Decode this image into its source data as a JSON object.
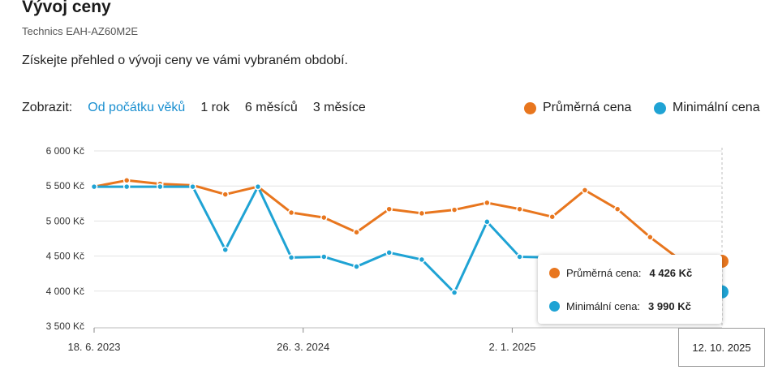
{
  "header": {
    "title": "Vývoj ceny",
    "subtitle": "Technics EAH-AZ60M2E",
    "description": "Získejte přehled o vývoji ceny ve vámi vybraném období."
  },
  "filters": {
    "label": "Zobrazit:",
    "options": [
      "Od počátku věků",
      "1 rok",
      "6 měsíců",
      "3 měsíce"
    ],
    "active": "Od počátku věků"
  },
  "legend": {
    "avg_label": "Průměrná cena",
    "min_label": "Minimální cena"
  },
  "colors": {
    "avg": "#e8761e",
    "min": "#1fa3d4",
    "active_link": "#1a8fd0"
  },
  "tooltip": {
    "avg_label": "Průměrná cena:",
    "avg_value": "4 426 Kč",
    "min_label": "Minimální cena:",
    "min_value": "3 990 Kč",
    "date": "12. 10. 2025"
  },
  "chart_data": {
    "type": "line",
    "yticks": [
      "6 000 Kč",
      "5 500 Kč",
      "5 000 Kč",
      "4 500 Kč",
      "4 000 Kč",
      "3 500 Kč"
    ],
    "ylim": [
      3500,
      6000
    ],
    "xticks": [
      "18. 6. 2023",
      "26. 3. 2024",
      "2. 1. 2025"
    ],
    "x_range": [
      "2023-06-18",
      "2025-10-12"
    ],
    "grid": true,
    "series": [
      {
        "name": "Průměrná cena",
        "points": [
          [
            "2023-06-18",
            5490
          ],
          [
            "2023-08-01",
            5580
          ],
          [
            "2023-09-15",
            5530
          ],
          [
            "2023-10-29",
            5510
          ],
          [
            "2023-12-12",
            5380
          ],
          [
            "2024-01-25",
            5490
          ],
          [
            "2024-03-10",
            5120
          ],
          [
            "2024-04-23",
            5050
          ],
          [
            "2024-06-06",
            4840
          ],
          [
            "2024-07-20",
            5170
          ],
          [
            "2024-09-02",
            5110
          ],
          [
            "2024-10-16",
            5160
          ],
          [
            "2024-11-29",
            5260
          ],
          [
            "2025-01-12",
            5170
          ],
          [
            "2025-02-25",
            5060
          ],
          [
            "2025-04-10",
            5440
          ],
          [
            "2025-05-24",
            5170
          ],
          [
            "2025-07-07",
            4770
          ],
          [
            "2025-08-20",
            4420
          ],
          [
            "2025-10-12",
            4426
          ]
        ]
      },
      {
        "name": "Minimální cena",
        "points": [
          [
            "2023-06-18",
            5490
          ],
          [
            "2023-08-01",
            5490
          ],
          [
            "2023-09-15",
            5490
          ],
          [
            "2023-10-29",
            5490
          ],
          [
            "2023-12-12",
            4590
          ],
          [
            "2024-01-25",
            5490
          ],
          [
            "2024-03-10",
            4480
          ],
          [
            "2024-04-23",
            4490
          ],
          [
            "2024-06-06",
            4350
          ],
          [
            "2024-07-20",
            4550
          ],
          [
            "2024-09-02",
            4450
          ],
          [
            "2024-10-16",
            3980
          ],
          [
            "2024-11-29",
            4990
          ],
          [
            "2025-01-12",
            4490
          ],
          [
            "2025-02-25",
            4480
          ],
          [
            "2025-04-10",
            4050
          ],
          [
            "2025-05-24",
            4010
          ],
          [
            "2025-07-07",
            3990
          ],
          [
            "2025-08-20",
            3990
          ],
          [
            "2025-10-12",
            3990
          ]
        ]
      }
    ]
  }
}
